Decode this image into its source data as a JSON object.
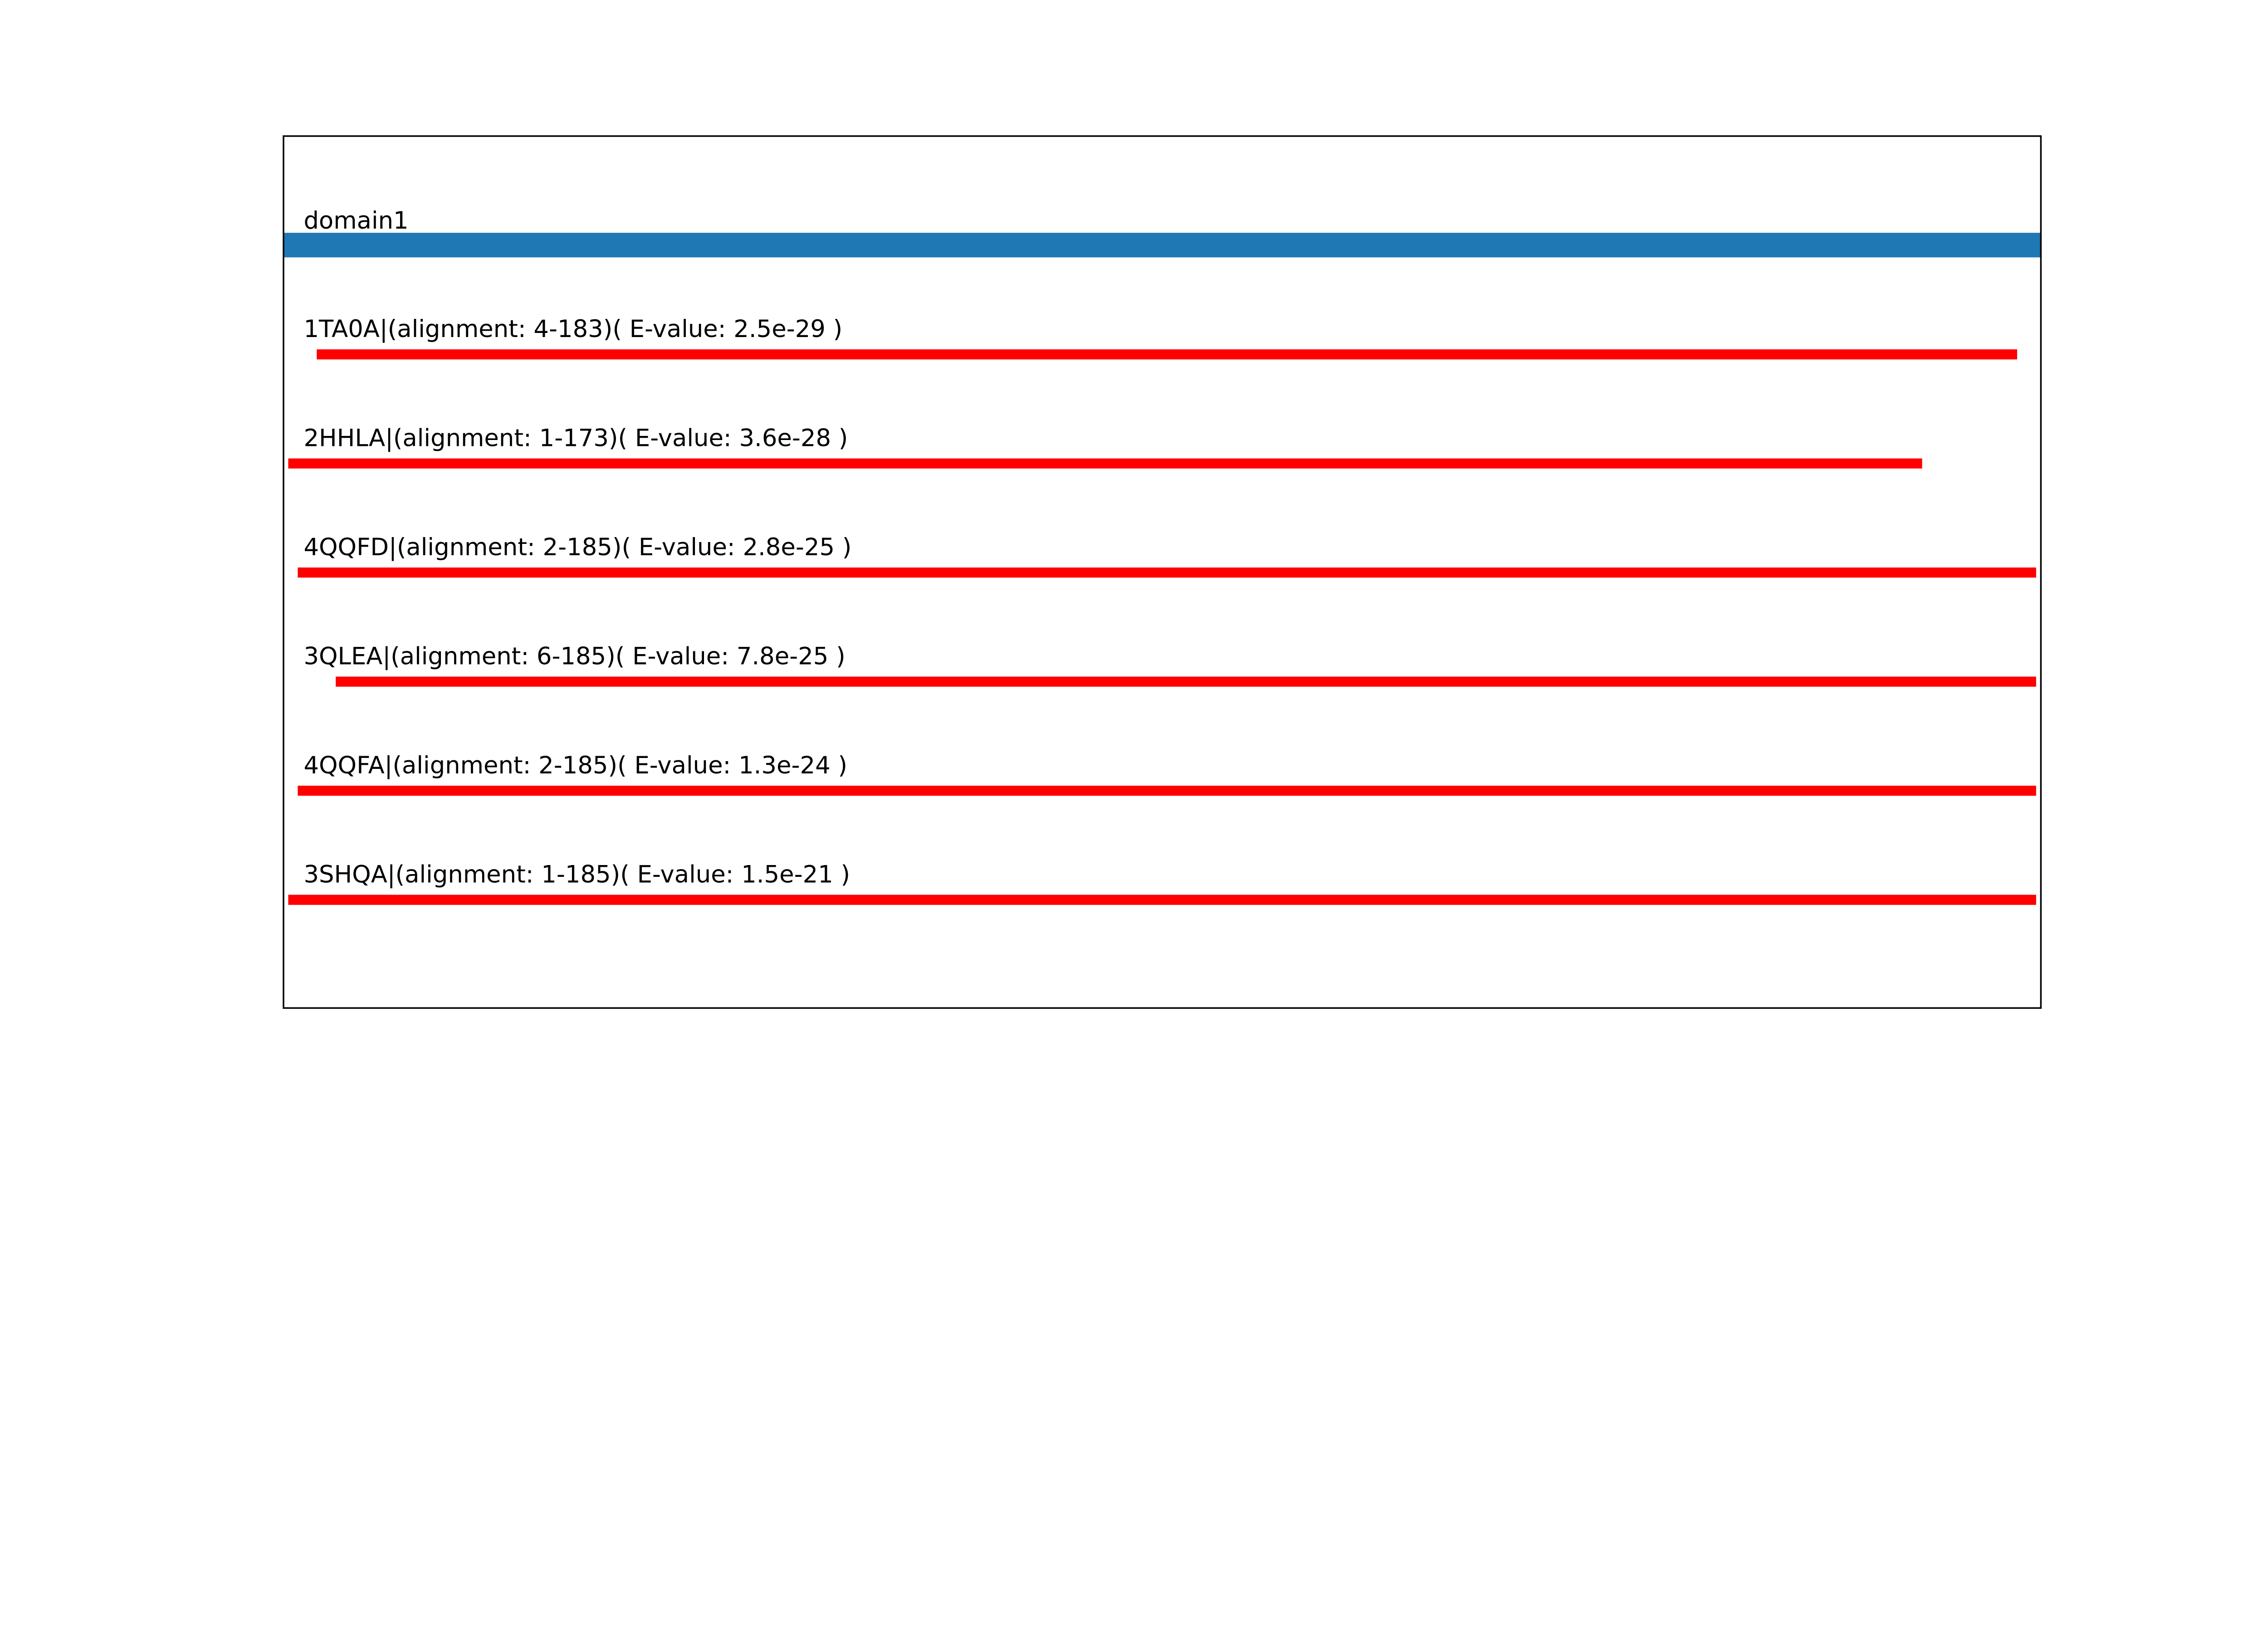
{
  "chart_data": {
    "type": "bar",
    "orientation": "horizontal-segments",
    "xlim": [
      0.5,
      185.5
    ],
    "grid": false,
    "axes_visible": false,
    "domain": {
      "label": "domain1",
      "start": 1,
      "end": 185,
      "color": "#1f77b4"
    },
    "hit_color": "#ff0000",
    "hits": [
      {
        "label": "1TA0A|(alignment: 4-183)( E-value: 2.5e-29 )",
        "id": "1TA0A",
        "start": 4,
        "end": 183,
        "evalue": "2.5e-29"
      },
      {
        "label": "2HHLA|(alignment: 1-173)( E-value: 3.6e-28 )",
        "id": "2HHLA",
        "start": 1,
        "end": 173,
        "evalue": "3.6e-28"
      },
      {
        "label": "4QQFD|(alignment: 2-185)( E-value: 2.8e-25 )",
        "id": "4QQFD",
        "start": 2,
        "end": 185,
        "evalue": "2.8e-25"
      },
      {
        "label": "3QLEA|(alignment: 6-185)( E-value: 7.8e-25 )",
        "id": "3QLEA",
        "start": 6,
        "end": 185,
        "evalue": "7.8e-25"
      },
      {
        "label": "4QQFA|(alignment: 2-185)( E-value: 1.3e-24 )",
        "id": "4QQFA",
        "start": 2,
        "end": 185,
        "evalue": "1.3e-24"
      },
      {
        "label": "3SHQA|(alignment: 1-185)( E-value: 1.5e-21 )",
        "id": "3SHQA",
        "start": 1,
        "end": 185,
        "evalue": "1.5e-21"
      }
    ]
  }
}
